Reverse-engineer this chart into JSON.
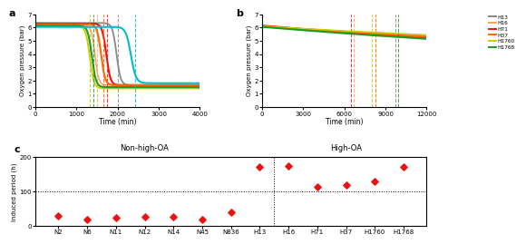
{
  "panel_a": {
    "title": "a",
    "xlabel": "Time (min)",
    "ylabel": "Oxygen pressure (bar)",
    "xlim": [
      0,
      4000
    ],
    "ylim": [
      0,
      7
    ],
    "yticks": [
      0,
      1,
      2,
      3,
      4,
      5,
      6,
      7
    ],
    "xticks": [
      0,
      1000,
      2000,
      3000,
      4000
    ],
    "series": {
      "N2": {
        "color": "#888888",
        "drop_start": 1750,
        "drop_end": 2200,
        "vline": 2000,
        "final": 1.65,
        "start": 6.35,
        "lw": 1.3
      },
      "N6": {
        "color": "#FFA060",
        "drop_start": 1250,
        "drop_end": 1650,
        "vline": 1500,
        "final": 1.65,
        "start": 6.2,
        "lw": 1.1
      },
      "N11": {
        "color": "#EE1111",
        "drop_start": 1500,
        "drop_end": 1950,
        "vline": 1750,
        "final": 1.65,
        "start": 6.3,
        "lw": 1.5
      },
      "N12": {
        "color": "#FF6600",
        "drop_start": 1380,
        "drop_end": 1820,
        "vline": 1650,
        "final": 1.65,
        "start": 6.25,
        "lw": 1.5
      },
      "N14": {
        "color": "#CCCC00",
        "drop_start": 1100,
        "drop_end": 1550,
        "vline": 1330,
        "final": 1.4,
        "start": 6.1,
        "lw": 1.3
      },
      "N45": {
        "color": "#229922",
        "drop_start": 1150,
        "drop_end": 1600,
        "vline": 1420,
        "final": 1.5,
        "start": 6.15,
        "lw": 1.5
      },
      "N836": {
        "color": "#00BBCC",
        "drop_start": 2050,
        "drop_end": 2600,
        "vline": 2420,
        "final": 1.8,
        "start": 6.05,
        "lw": 1.5
      }
    }
  },
  "panel_b": {
    "title": "b",
    "xlabel": "Time (min)",
    "ylabel": "Oxygen pressure (bar)",
    "xlim": [
      0,
      12000
    ],
    "ylim": [
      0,
      7
    ],
    "yticks": [
      0,
      1,
      2,
      3,
      4,
      5,
      6,
      7
    ],
    "xticks": [
      0,
      3000,
      6000,
      9000,
      12000
    ],
    "series": {
      "H13": {
        "color": "#888888",
        "vline": 9700,
        "start": 6.1,
        "end": 5.35,
        "lw": 1.3
      },
      "H16": {
        "color": "#FFA060",
        "vline": 6700,
        "start": 6.05,
        "end": 5.4,
        "lw": 1.1
      },
      "H71": {
        "color": "#EE1111",
        "vline": 6500,
        "start": 6.15,
        "end": 5.2,
        "lw": 1.5
      },
      "H37": {
        "color": "#FF6600",
        "vline": 8300,
        "start": 6.1,
        "end": 5.3,
        "lw": 1.5
      },
      "H1760": {
        "color": "#CCCC00",
        "vline": 8000,
        "start": 6.1,
        "end": 5.45,
        "lw": 1.1
      },
      "H1768": {
        "color": "#229922",
        "vline": 9900,
        "start": 6.05,
        "end": 5.15,
        "lw": 1.5
      }
    }
  },
  "panel_c": {
    "title": "c",
    "xlabel_left": "Non-high-OA",
    "xlabel_right": "High-OA",
    "ylabel": "Induced period (h)",
    "ylim": [
      0,
      200
    ],
    "yticks": [
      0,
      100,
      200
    ],
    "hline": 100,
    "vline_pos": 7.5,
    "categories": [
      "N2",
      "N6",
      "N11",
      "N12",
      "N14",
      "N45",
      "N836",
      "H13",
      "H16",
      "H71",
      "H37",
      "H1760",
      "H1768"
    ],
    "values": [
      28,
      18,
      23,
      25,
      25,
      17,
      38,
      170,
      173,
      112,
      118,
      130,
      172
    ],
    "dot_color": "#EE1111"
  }
}
